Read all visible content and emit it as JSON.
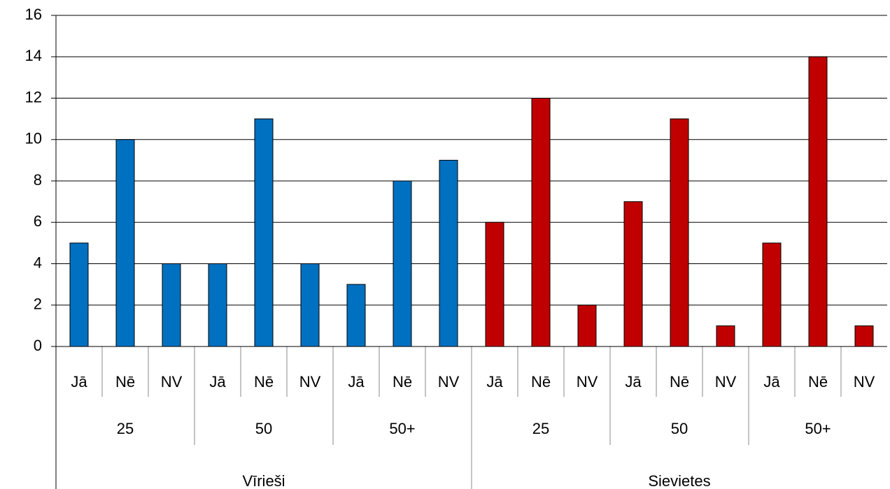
{
  "chart_data": {
    "type": "bar",
    "categories": [
      "Jā",
      "Nē",
      "NV",
      "Jā",
      "Nē",
      "NV",
      "Jā",
      "Nē",
      "NV",
      "Jā",
      "Nē",
      "NV",
      "Jā",
      "Nē",
      "NV",
      "Jā",
      "Nē",
      "NV"
    ],
    "group_labels": [
      "25",
      "50",
      "50+",
      "25",
      "50",
      "50+"
    ],
    "supergroup_labels": [
      "Vīrieši",
      "Sievietes"
    ],
    "supergroup_colors": [
      "#0070c0",
      "#c00000"
    ],
    "values": [
      5,
      10,
      4,
      4,
      11,
      4,
      3,
      8,
      9,
      6,
      12,
      2,
      7,
      11,
      1,
      5,
      14,
      1
    ],
    "ylim": [
      0,
      16
    ],
    "yticks": [
      0,
      2,
      4,
      6,
      8,
      10,
      12,
      14,
      16
    ],
    "grid": true
  }
}
